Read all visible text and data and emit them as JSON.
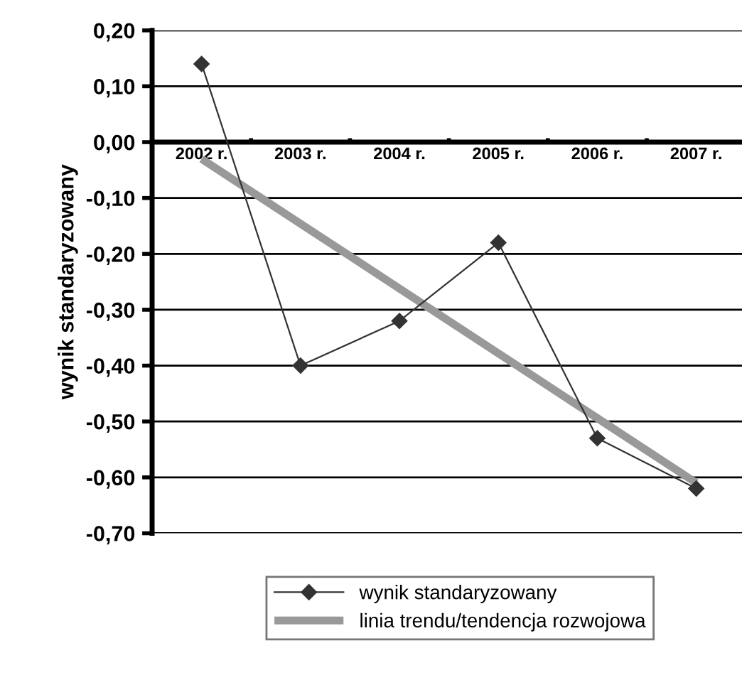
{
  "chart_data": {
    "type": "line",
    "ylabel": "wynik standaryzowany",
    "categories": [
      "2002 r.",
      "2003 r.",
      "2004 r.",
      "2005 r.",
      "2006 r.",
      "2007 r."
    ],
    "series": [
      {
        "name": "wynik standaryzowany",
        "color": "#333333",
        "values": [
          0.14,
          -0.4,
          -0.32,
          -0.18,
          -0.53,
          -0.62
        ],
        "marker": "diamond"
      },
      {
        "name": "linia trendu/tendencja rozwojowa",
        "color": "#999999",
        "values": [
          -0.03,
          -0.146,
          -0.262,
          -0.378,
          -0.494,
          -0.61
        ],
        "marker": "none"
      }
    ],
    "ylim": [
      -0.7,
      0.2
    ],
    "yticks": [
      {
        "value": 0.2,
        "label": "0,20"
      },
      {
        "value": 0.1,
        "label": "0,10"
      },
      {
        "value": 0,
        "label": "0,00"
      },
      {
        "value": -0.1,
        "label": "-0,10"
      },
      {
        "value": -0.2,
        "label": "-0,20"
      },
      {
        "value": -0.3,
        "label": "-0,30"
      },
      {
        "value": -0.4,
        "label": "-0,40"
      },
      {
        "value": -0.5,
        "label": "-0,50"
      },
      {
        "value": -0.6,
        "label": "-0,60"
      },
      {
        "value": -0.7,
        "label": "-0,70"
      }
    ],
    "grid": "y",
    "legend": "bottom"
  }
}
